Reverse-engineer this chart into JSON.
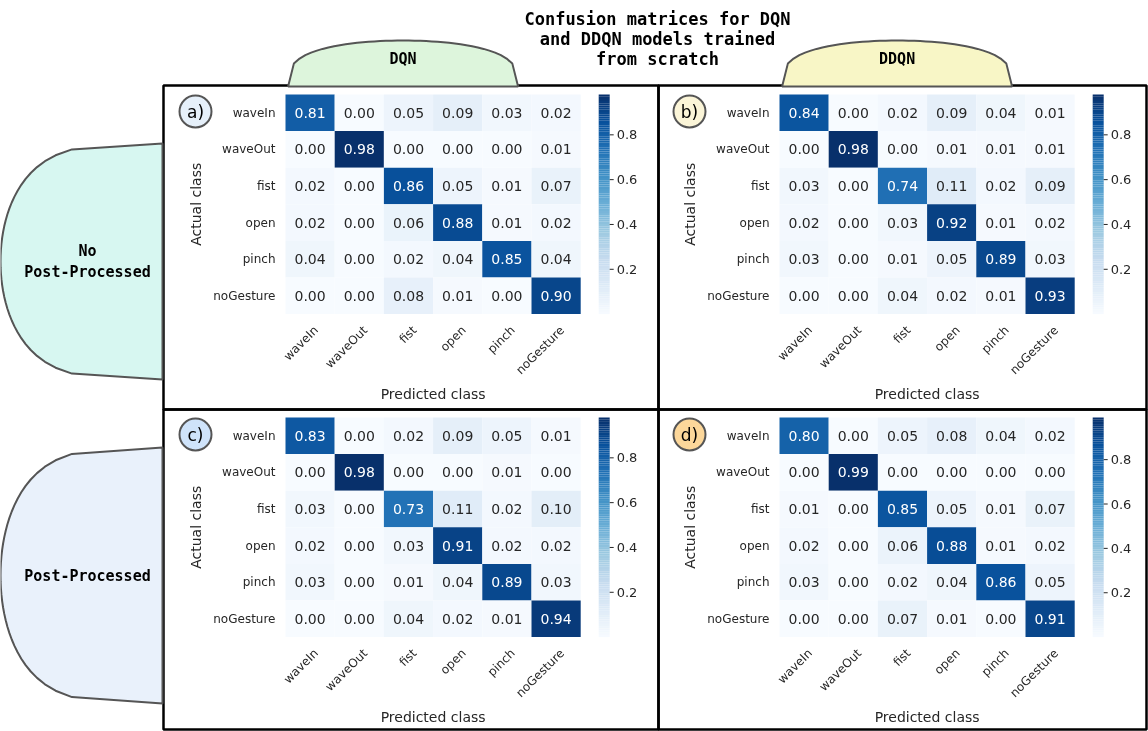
{
  "chart_data": [
    {
      "type": "heatmap",
      "title": "Confusion matrices for DQN and DDQN models trained from scratch",
      "xlabel": "Predicted class",
      "ylabel": "Actual class",
      "annotations": [
        "a)",
        "DQN",
        "No Post-Processed"
      ],
      "categories": [
        "waveIn",
        "waveOut",
        "fist",
        "open",
        "pinch",
        "noGesture"
      ],
      "y_categories": [
        "waveIn",
        "waveOut",
        "fist",
        "open",
        "pinch",
        "noGesture"
      ],
      "cells": [
        [
          0.81,
          0.0,
          0.05,
          0.09,
          0.03,
          0.02
        ],
        [
          0.0,
          0.98,
          0.0,
          0.0,
          0.0,
          0.01
        ],
        [
          0.02,
          0.0,
          0.86,
          0.05,
          0.01,
          0.07
        ],
        [
          0.02,
          0.0,
          0.06,
          0.88,
          0.01,
          0.02
        ],
        [
          0.04,
          0.0,
          0.02,
          0.04,
          0.85,
          0.04
        ],
        [
          0.0,
          0.0,
          0.08,
          0.01,
          0.0,
          0.9
        ]
      ],
      "cell_labels": [
        [
          "0.81",
          "0.00",
          "0.05",
          "0.09",
          "0.03",
          "0.02"
        ],
        [
          "0.00",
          "0.98",
          "0.00",
          "0.00",
          "0.00",
          "0.01"
        ],
        [
          "0.02",
          "0.00",
          "0.86",
          "0.05",
          "0.01",
          "0.07"
        ],
        [
          "0.02",
          "0.00",
          "0.06",
          "0.88",
          "0.01",
          "0.02"
        ],
        [
          "0.04",
          "0.00",
          "0.02",
          "0.04",
          "0.85",
          "0.04"
        ],
        [
          "0.00",
          "0.00",
          "0.08",
          "0.01",
          "0.00",
          "0.90"
        ]
      ],
      "clim": [
        0,
        0.98
      ],
      "cticks": [
        0.2,
        0.4,
        0.6,
        0.8
      ]
    },
    {
      "type": "heatmap",
      "xlabel": "Predicted class",
      "ylabel": "Actual class",
      "annotations": [
        "b)",
        "DDQN"
      ],
      "categories": [
        "waveIn",
        "waveOut",
        "fist",
        "open",
        "pinch",
        "noGesture"
      ],
      "y_categories": [
        "waveIn",
        "waveOut",
        "fist",
        "open",
        "pinch",
        "noGesture"
      ],
      "cells": [
        [
          0.84,
          0.0,
          0.02,
          0.09,
          0.04,
          0.01
        ],
        [
          0.0,
          0.98,
          0.0,
          0.01,
          0.01,
          0.01
        ],
        [
          0.03,
          0.0,
          0.74,
          0.11,
          0.02,
          0.09
        ],
        [
          0.02,
          0.0,
          0.03,
          0.92,
          0.01,
          0.02
        ],
        [
          0.03,
          0.0,
          0.01,
          0.05,
          0.89,
          0.03
        ],
        [
          0.0,
          0.0,
          0.04,
          0.02,
          0.01,
          0.93
        ]
      ],
      "cell_labels": [
        [
          "0.84",
          "0.00",
          "0.02",
          "0.09",
          "0.04",
          "0.01"
        ],
        [
          "0.00",
          "0.98",
          "0.00",
          "0.01",
          "0.01",
          "0.01"
        ],
        [
          "0.03",
          "0.00",
          "0.74",
          "0.11",
          "0.02",
          "0.09"
        ],
        [
          "0.02",
          "0.00",
          "0.03",
          "0.92",
          "0.01",
          "0.02"
        ],
        [
          "0.03",
          "0.00",
          "0.01",
          "0.05",
          "0.89",
          "0.03"
        ],
        [
          "0.00",
          "0.00",
          "0.04",
          "0.02",
          "0.01",
          "0.93"
        ]
      ],
      "clim": [
        0,
        0.98
      ],
      "cticks": [
        0.2,
        0.4,
        0.6,
        0.8
      ]
    },
    {
      "type": "heatmap",
      "xlabel": "Predicted class",
      "ylabel": "Actual class",
      "annotations": [
        "c)",
        "Post-Processed"
      ],
      "categories": [
        "waveIn",
        "waveOut",
        "fist",
        "open",
        "pinch",
        "noGesture"
      ],
      "y_categories": [
        "waveIn",
        "waveOut",
        "fist",
        "open",
        "pinch",
        "noGesture"
      ],
      "cells": [
        [
          0.83,
          0.0,
          0.02,
          0.09,
          0.05,
          0.01
        ],
        [
          0.0,
          0.98,
          0.0,
          0.0,
          0.01,
          0.0
        ],
        [
          0.03,
          0.0,
          0.73,
          0.11,
          0.02,
          0.1
        ],
        [
          0.02,
          0.0,
          0.03,
          0.91,
          0.02,
          0.02
        ],
        [
          0.03,
          0.0,
          0.01,
          0.04,
          0.89,
          0.03
        ],
        [
          0.0,
          0.0,
          0.04,
          0.02,
          0.01,
          0.94
        ]
      ],
      "cell_labels": [
        [
          "0.83",
          "0.00",
          "0.02",
          "0.09",
          "0.05",
          "0.01"
        ],
        [
          "0.00",
          "0.98",
          "0.00",
          "0.00",
          "0.01",
          "0.00"
        ],
        [
          "0.03",
          "0.00",
          "0.73",
          "0.11",
          "0.02",
          "0.10"
        ],
        [
          "0.02",
          "0.00",
          "0.03",
          "0.91",
          "0.02",
          "0.02"
        ],
        [
          "0.03",
          "0.00",
          "0.01",
          "0.04",
          "0.89",
          "0.03"
        ],
        [
          "0.00",
          "0.00",
          "0.04",
          "0.02",
          "0.01",
          "0.94"
        ]
      ],
      "clim": [
        0,
        0.98
      ],
      "cticks": [
        0.2,
        0.4,
        0.6,
        0.8
      ]
    },
    {
      "type": "heatmap",
      "xlabel": "Predicted class",
      "ylabel": "Actual class",
      "annotations": [
        "d)"
      ],
      "categories": [
        "waveIn",
        "waveOut",
        "fist",
        "open",
        "pinch",
        "noGesture"
      ],
      "y_categories": [
        "waveIn",
        "waveOut",
        "fist",
        "open",
        "pinch",
        "noGesture"
      ],
      "cells": [
        [
          0.8,
          0.0,
          0.05,
          0.08,
          0.04,
          0.02
        ],
        [
          0.0,
          0.99,
          0.0,
          0.0,
          0.0,
          0.0
        ],
        [
          0.01,
          0.0,
          0.85,
          0.05,
          0.01,
          0.07
        ],
        [
          0.02,
          0.0,
          0.06,
          0.88,
          0.01,
          0.02
        ],
        [
          0.03,
          0.0,
          0.02,
          0.04,
          0.86,
          0.05
        ],
        [
          0.0,
          0.0,
          0.07,
          0.01,
          0.0,
          0.91
        ]
      ],
      "cell_labels": [
        [
          "0.80",
          "0.00",
          "0.05",
          "0.08",
          "0.04",
          "0.02"
        ],
        [
          "0.00",
          "0.99",
          "0.00",
          "0.00",
          "0.00",
          "0.00"
        ],
        [
          "0.01",
          "0.00",
          "0.85",
          "0.05",
          "0.01",
          "0.07"
        ],
        [
          "0.02",
          "0.00",
          "0.06",
          "0.88",
          "0.01",
          "0.02"
        ],
        [
          "0.03",
          "0.00",
          "0.02",
          "0.04",
          "0.86",
          "0.05"
        ],
        [
          "0.00",
          "0.00",
          "0.07",
          "0.01",
          "0.00",
          "0.91"
        ]
      ],
      "clim": [
        0,
        0.99
      ],
      "cticks": [
        0.2,
        0.4,
        0.6,
        0.8
      ]
    }
  ]
}
